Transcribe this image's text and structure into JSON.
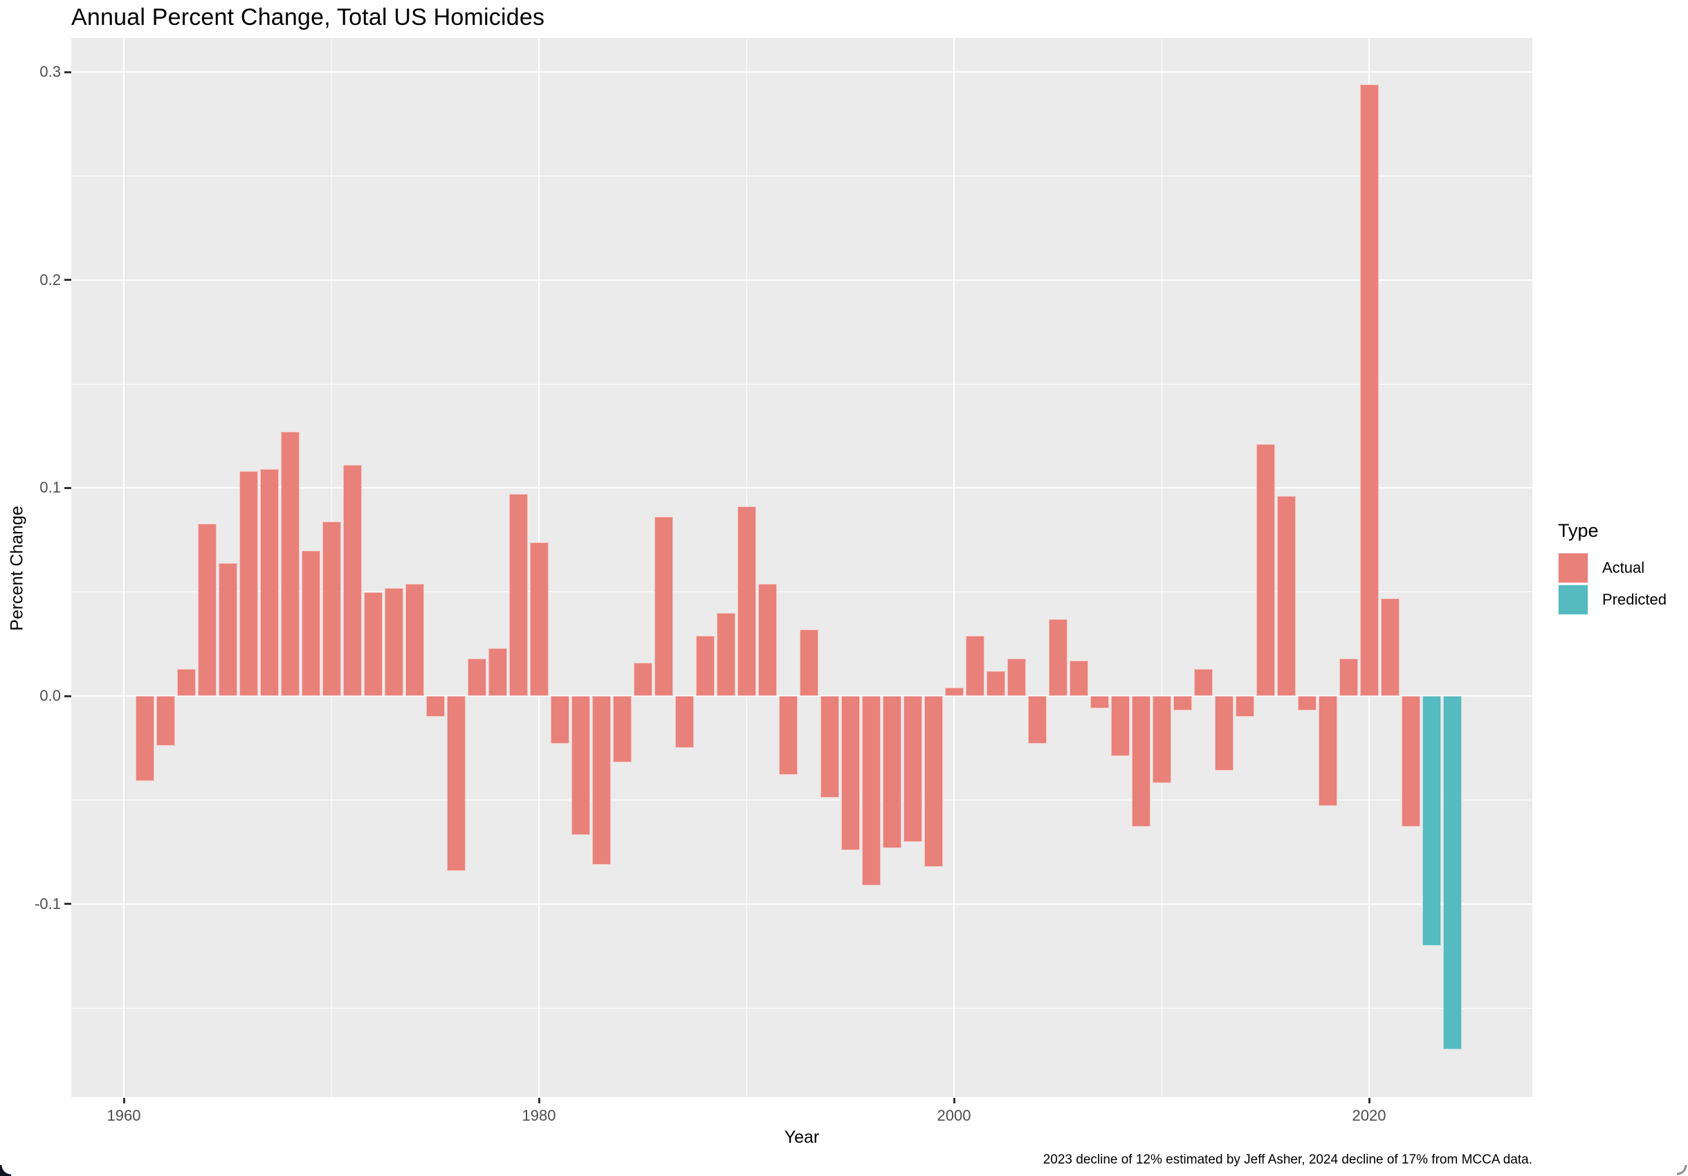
{
  "caption": "2023 decline of 12% estimated by Jeff Asher, 2024 decline of 17% from MCCA data.",
  "chart_data": {
    "type": "bar",
    "title": "Annual Percent Change, Total US Homicides",
    "xlabel": "Year",
    "ylabel": "Percent Change",
    "x": [
      1961,
      1962,
      1963,
      1964,
      1965,
      1966,
      1967,
      1968,
      1969,
      1970,
      1971,
      1972,
      1973,
      1974,
      1975,
      1976,
      1977,
      1978,
      1979,
      1980,
      1981,
      1982,
      1983,
      1984,
      1985,
      1986,
      1987,
      1988,
      1989,
      1990,
      1991,
      1992,
      1993,
      1994,
      1995,
      1996,
      1997,
      1998,
      1999,
      2000,
      2001,
      2002,
      2003,
      2004,
      2005,
      2006,
      2007,
      2008,
      2009,
      2010,
      2011,
      2012,
      2013,
      2014,
      2015,
      2016,
      2017,
      2018,
      2019,
      2020,
      2021,
      2022,
      2023,
      2024
    ],
    "values": [
      -0.041,
      -0.024,
      0.013,
      0.083,
      0.064,
      0.108,
      0.109,
      0.127,
      0.07,
      0.084,
      0.111,
      0.05,
      0.052,
      0.054,
      -0.01,
      -0.084,
      0.018,
      0.023,
      0.097,
      0.074,
      -0.023,
      -0.067,
      -0.081,
      -0.032,
      0.016,
      0.086,
      -0.025,
      0.029,
      0.04,
      0.091,
      0.054,
      -0.038,
      0.032,
      -0.049,
      -0.074,
      -0.091,
      -0.073,
      -0.07,
      -0.082,
      0.004,
      0.029,
      0.012,
      0.018,
      -0.023,
      0.037,
      0.017,
      -0.006,
      -0.029,
      -0.063,
      -0.042,
      -0.007,
      0.013,
      -0.036,
      -0.01,
      0.121,
      0.096,
      -0.007,
      -0.053,
      0.018,
      0.294,
      0.047,
      -0.063,
      -0.12,
      -0.17
    ],
    "predicted_years": [
      2023,
      2024
    ],
    "legend": {
      "title": "Type",
      "position": "right",
      "entries": [
        {
          "label": "Actual",
          "color": "#E8817A"
        },
        {
          "label": "Predicted",
          "color": "#56BBC0"
        }
      ]
    },
    "axes": {
      "xlim": [
        1957.467,
        2027.867
      ],
      "ylim": [
        -0.1929,
        0.3163
      ],
      "x_ticks": {
        "values": [
          1960,
          1980,
          2000,
          2020
        ],
        "labels": [
          "1960",
          "1980",
          "2000",
          "2020"
        ]
      },
      "x_minor": [
        1970,
        1990,
        2010
      ],
      "y_ticks": {
        "values": [
          0.3,
          0.2,
          0.1,
          0.0,
          -0.1
        ],
        "labels": [
          "0.3",
          "0.2",
          "0.1",
          "0.0",
          "-0.1"
        ]
      },
      "y_minor": [
        0.25,
        0.15,
        0.05,
        -0.05,
        -0.15
      ],
      "grid": true
    },
    "theme": {
      "panel_bg": "#EBEBEB",
      "grid_color": "#FFFFFF",
      "tick_label_color": "#4D4D4D",
      "axis_tick_color": "#333333",
      "text_color": "#000000"
    }
  }
}
